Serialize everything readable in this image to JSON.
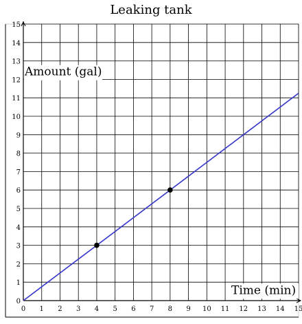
{
  "chart_data": {
    "type": "line",
    "title": "Leaking tank",
    "xlabel": "Time (min)",
    "ylabel": "Amount (gal)",
    "xlim": [
      0,
      15
    ],
    "ylim": [
      0,
      15
    ],
    "x_ticks": [
      0,
      1,
      2,
      3,
      4,
      5,
      6,
      7,
      8,
      9,
      10,
      11,
      12,
      13,
      14,
      15
    ],
    "y_ticks": [
      0,
      1,
      2,
      3,
      4,
      5,
      6,
      7,
      8,
      9,
      10,
      11,
      12,
      13,
      14,
      15
    ],
    "grid": true,
    "line": {
      "slope": 0.75,
      "intercept": 0,
      "color": "#3333cc"
    },
    "points": [
      {
        "x": 4,
        "y": 3
      },
      {
        "x": 8,
        "y": 6
      }
    ]
  }
}
